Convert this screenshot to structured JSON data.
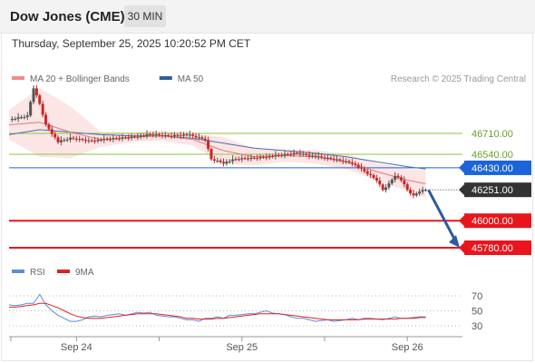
{
  "header": {
    "title": "Dow Jones (CME)",
    "timeframe": "30 MIN"
  },
  "datetime": "Thursday, September 25, 2025 10:20:52 PM CET",
  "legend": {
    "items": [
      {
        "label": "MA 20 + Bollinger Bands",
        "color": "#f28b8b"
      },
      {
        "label": "MA 50",
        "color": "#2f5e9e"
      }
    ],
    "credit": "Research © 2025 Trading Central"
  },
  "rsi_legend": {
    "items": [
      {
        "label": "RSI",
        "color": "#5b8fd6"
      },
      {
        "label": "9MA",
        "color": "#e02020"
      }
    ]
  },
  "colors": {
    "green_level": "#8cc63f",
    "blue_level": "#1c64d8",
    "red_level": "#e8161c",
    "price_tag": "#333333",
    "arrow": "#2c5aa0",
    "candle_up": "#555555",
    "candle_down": "#c62828"
  },
  "chart_data": [
    {
      "type": "candlestick",
      "title": "Dow Jones (CME)",
      "timeframe": "30 MIN",
      "x_tick_labels": [
        "Sep 24",
        "Sep 25",
        "Sep 26"
      ],
      "levels": [
        {
          "value": 46710.0,
          "label": "46710.00",
          "kind": "resistance"
        },
        {
          "value": 46540.0,
          "label": "46540.00",
          "kind": "resistance"
        },
        {
          "value": 46430.0,
          "label": "46430.00",
          "kind": "pivot"
        },
        {
          "value": 46251.0,
          "label": "46251.00",
          "kind": "last_price"
        },
        {
          "value": 46000.0,
          "label": "46000.00",
          "kind": "target"
        },
        {
          "value": 45780.0,
          "label": "45780.00",
          "kind": "target"
        }
      ],
      "price_path": [
        [
          0,
          46820
        ],
        [
          3,
          46850
        ],
        [
          4,
          47080
        ],
        [
          5,
          46950
        ],
        [
          6,
          46780
        ],
        [
          8,
          46640
        ],
        [
          10,
          46670
        ],
        [
          13,
          46650
        ],
        [
          17,
          46665
        ],
        [
          20,
          46680
        ],
        [
          23,
          46700
        ],
        [
          26,
          46690
        ],
        [
          29,
          46700
        ],
        [
          32,
          46660
        ],
        [
          33,
          46500
        ],
        [
          35,
          46470
        ],
        [
          37,
          46500
        ],
        [
          40,
          46510
        ],
        [
          44,
          46530
        ],
        [
          47,
          46550
        ],
        [
          50,
          46520
        ],
        [
          53,
          46500
        ],
        [
          56,
          46470
        ],
        [
          58,
          46400
        ],
        [
          60,
          46330
        ],
        [
          61,
          46250
        ],
        [
          62,
          46300
        ],
        [
          63,
          46370
        ],
        [
          64,
          46330
        ],
        [
          65,
          46250
        ],
        [
          66,
          46200
        ],
        [
          67,
          46240
        ],
        [
          68,
          46251
        ]
      ],
      "ma20": [
        [
          0,
          46780
        ],
        [
          5,
          46800
        ],
        [
          10,
          46720
        ],
        [
          15,
          46660
        ],
        [
          20,
          46680
        ],
        [
          25,
          46690
        ],
        [
          30,
          46660
        ],
        [
          35,
          46570
        ],
        [
          40,
          46520
        ],
        [
          45,
          46530
        ],
        [
          50,
          46520
        ],
        [
          55,
          46480
        ],
        [
          60,
          46400
        ],
        [
          65,
          46330
        ],
        [
          68,
          46300
        ]
      ],
      "ma50": [
        [
          0,
          46700
        ],
        [
          5,
          46740
        ],
        [
          10,
          46720
        ],
        [
          15,
          46700
        ],
        [
          20,
          46690
        ],
        [
          25,
          46690
        ],
        [
          30,
          46670
        ],
        [
          35,
          46630
        ],
        [
          40,
          46590
        ],
        [
          45,
          46570
        ],
        [
          50,
          46550
        ],
        [
          55,
          46520
        ],
        [
          60,
          46480
        ],
        [
          65,
          46440
        ],
        [
          68,
          46420
        ]
      ],
      "forecast_arrow": {
        "from": [
          68,
          46251
        ],
        "to": [
          74,
          45780
        ]
      },
      "ylim": [
        45750,
        47120
      ]
    },
    {
      "type": "line",
      "title": "RSI",
      "levels": [
        70,
        50,
        30
      ],
      "ylim": [
        15,
        95
      ],
      "series": [
        {
          "name": "RSI",
          "values": [
            58,
            57,
            58,
            60,
            60,
            72,
            58,
            50,
            44,
            40,
            36,
            36,
            38,
            42,
            43,
            42,
            44,
            45,
            46,
            44,
            46,
            48,
            47,
            48,
            44,
            43,
            42,
            42,
            40,
            38,
            38,
            36,
            40,
            40,
            42,
            40,
            44,
            44,
            45,
            46,
            46,
            48,
            50,
            47,
            46,
            45,
            42,
            40,
            40,
            38,
            36,
            37,
            38,
            36,
            37,
            38,
            40,
            38,
            40,
            40,
            39,
            38,
            40,
            42,
            40,
            40,
            41,
            42,
            42
          ]
        },
        {
          "name": "9MA",
          "values": [
            55,
            55,
            56,
            57,
            58,
            60,
            60,
            57,
            54,
            50,
            46,
            43,
            41,
            40,
            40,
            40,
            41,
            42,
            43,
            44,
            45,
            46,
            46,
            46,
            46,
            45,
            44,
            43,
            42,
            40,
            40,
            39,
            39,
            39,
            40,
            40,
            41,
            42,
            43,
            44,
            45,
            46,
            46,
            46,
            46,
            45,
            44,
            43,
            42,
            41,
            40,
            39,
            38,
            38,
            38,
            38,
            38,
            38,
            39,
            39,
            39,
            39,
            39,
            39,
            40,
            40,
            40,
            41,
            41
          ]
        }
      ]
    }
  ]
}
